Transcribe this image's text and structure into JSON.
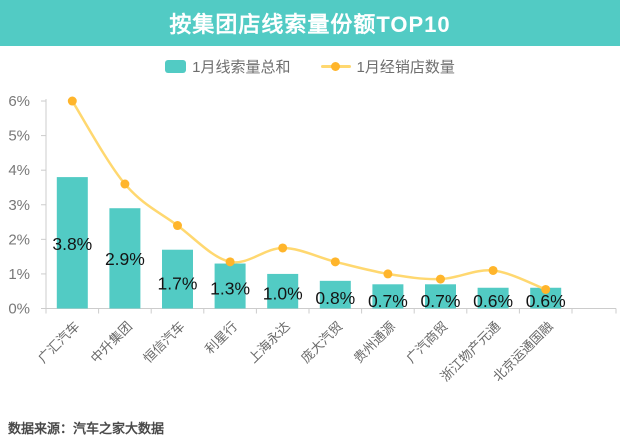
{
  "header": {
    "title": "按集团店线索量份额TOP10"
  },
  "legend": {
    "bar_label": "1月线索量总和",
    "line_label": "1月经销店数量"
  },
  "footer": {
    "source": "数据来源：汽车之家大数据"
  },
  "colors": {
    "teal": "#52cbc4",
    "line_yellow": "#ffd870",
    "dot_orange": "#ffb52b",
    "axis_gray": "#cccccc",
    "y_label_gray": "#787878",
    "x_label_gray": "#686868",
    "value_label_black": "#141414"
  },
  "chart_data": {
    "type": "bar",
    "title": "按集团店线索量份额TOP10",
    "categories": [
      "广汇汽车",
      "中升集团",
      "恒信汽车",
      "利星行",
      "上海永达",
      "庞大汽贸",
      "贵州通源",
      "广汽商贸",
      "浙江物产元通",
      "北京运通国融"
    ],
    "series": [
      {
        "name": "1月线索量总和",
        "type": "bar",
        "values": [
          3.8,
          2.9,
          1.7,
          1.3,
          1.0,
          0.8,
          0.7,
          0.7,
          0.6,
          0.6
        ],
        "value_labels": [
          "3.8%",
          "2.9%",
          "1.7%",
          "1.3%",
          "1.0%",
          "0.8%",
          "0.7%",
          "0.7%",
          "0.6%",
          "0.6%"
        ]
      },
      {
        "name": "1月经销店数量",
        "type": "line",
        "smooth": true,
        "values": [
          6.0,
          3.6,
          2.4,
          1.35,
          1.75,
          1.35,
          1.0,
          0.85,
          1.1,
          0.55
        ]
      }
    ],
    "xlabel": "",
    "ylabel": "",
    "ylim": [
      0,
      6
    ],
    "y_tick_labels": [
      "0%",
      "1%",
      "2%",
      "3%",
      "4%",
      "5%",
      "6%"
    ],
    "grid": false,
    "legend_position": "top"
  }
}
